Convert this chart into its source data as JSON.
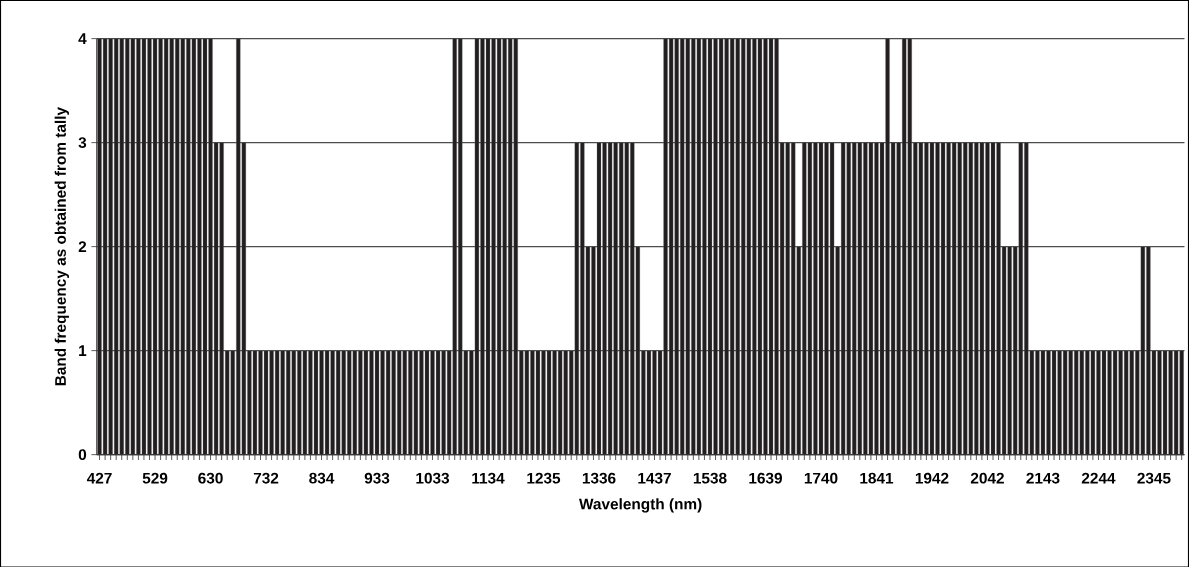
{
  "chart_data": {
    "type": "bar",
    "xlabel": "Wavelength (nm)",
    "ylabel": "Band frequency as obtained from tally",
    "categories": [
      "427",
      null,
      null,
      null,
      null,
      null,
      null,
      null,
      null,
      null,
      "529",
      null,
      null,
      null,
      null,
      null,
      null,
      null,
      null,
      null,
      "630",
      null,
      null,
      null,
      null,
      null,
      null,
      null,
      null,
      null,
      "732",
      null,
      null,
      null,
      null,
      null,
      null,
      null,
      null,
      null,
      "834",
      null,
      null,
      null,
      null,
      null,
      null,
      null,
      null,
      null,
      "933",
      null,
      null,
      null,
      null,
      null,
      null,
      null,
      null,
      null,
      "1033",
      null,
      null,
      null,
      null,
      null,
      null,
      null,
      null,
      null,
      "1134",
      null,
      null,
      null,
      null,
      null,
      null,
      null,
      null,
      null,
      "1235",
      null,
      null,
      null,
      null,
      null,
      null,
      null,
      null,
      null,
      "1336",
      null,
      null,
      null,
      null,
      null,
      null,
      null,
      null,
      null,
      "1437",
      null,
      null,
      null,
      null,
      null,
      null,
      null,
      null,
      null,
      "1538",
      null,
      null,
      null,
      null,
      null,
      null,
      null,
      null,
      null,
      "1639",
      null,
      null,
      null,
      null,
      null,
      null,
      null,
      null,
      null,
      "1740",
      null,
      null,
      null,
      null,
      null,
      null,
      null,
      null,
      null,
      "1841",
      null,
      null,
      null,
      null,
      null,
      null,
      null,
      null,
      null,
      "1942",
      null,
      null,
      null,
      null,
      null,
      null,
      null,
      null,
      null,
      "2042",
      null,
      null,
      null,
      null,
      null,
      null,
      null,
      null,
      null,
      "2143",
      null,
      null,
      null,
      null,
      null,
      null,
      null,
      null,
      null,
      "2244",
      null,
      null,
      null,
      null,
      null,
      null,
      null,
      null,
      null,
      "2345",
      null,
      null,
      null,
      null,
      null
    ],
    "values": [
      4,
      4,
      4,
      4,
      4,
      4,
      4,
      4,
      4,
      4,
      4,
      4,
      4,
      4,
      4,
      4,
      4,
      4,
      4,
      4,
      4,
      3,
      3,
      1,
      1,
      4,
      3,
      1,
      1,
      1,
      1,
      1,
      1,
      1,
      1,
      1,
      1,
      1,
      1,
      1,
      1,
      1,
      1,
      1,
      1,
      1,
      1,
      1,
      1,
      1,
      1,
      1,
      1,
      1,
      1,
      1,
      1,
      1,
      1,
      1,
      1,
      1,
      1,
      1,
      4,
      4,
      1,
      1,
      4,
      4,
      4,
      4,
      4,
      4,
      4,
      4,
      1,
      1,
      1,
      1,
      1,
      1,
      1,
      1,
      1,
      1,
      3,
      3,
      2,
      2,
      3,
      3,
      3,
      3,
      3,
      3,
      3,
      2,
      1,
      1,
      1,
      1,
      4,
      4,
      4,
      4,
      4,
      4,
      4,
      4,
      4,
      4,
      4,
      4,
      4,
      4,
      4,
      4,
      4,
      4,
      4,
      4,
      4,
      3,
      3,
      3,
      2,
      3,
      3,
      3,
      3,
      3,
      3,
      2,
      3,
      3,
      3,
      3,
      3,
      3,
      3,
      3,
      4,
      3,
      3,
      4,
      4,
      3,
      3,
      3,
      3,
      3,
      3,
      3,
      3,
      3,
      3,
      3,
      3,
      3,
      3,
      3,
      3,
      2,
      2,
      2,
      3,
      3,
      1,
      1,
      1,
      1,
      1,
      1,
      1,
      1,
      1,
      1,
      1,
      1,
      1,
      1,
      1,
      1,
      1,
      1,
      1,
      1,
      2,
      2,
      1,
      1,
      1,
      1,
      1,
      1
    ],
    "color": "#231f20",
    "ylim": [
      0,
      4
    ],
    "yticks": [
      0,
      1,
      2,
      3,
      4
    ],
    "grid": "y"
  }
}
